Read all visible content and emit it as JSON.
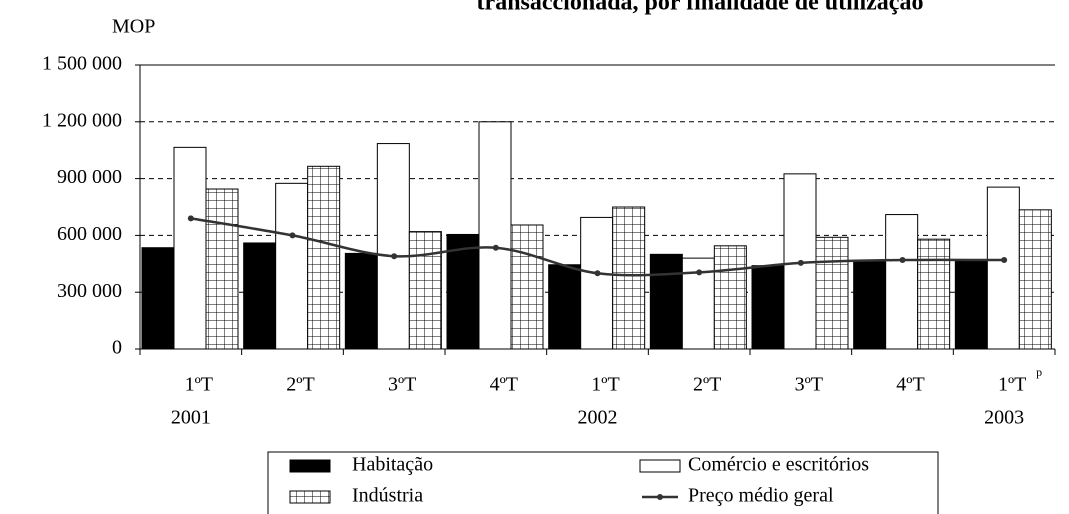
{
  "chart_data": {
    "type": "bar",
    "title": "transaccionada, por finalidade de utilização",
    "y_axis_label": "MOP",
    "categories": [
      "1ºT",
      "2ºT",
      "3ºT",
      "4ºT",
      "1ºT",
      "2ºT",
      "3ºT",
      "4ºT",
      "1ºT"
    ],
    "category_note": "p",
    "years": [
      "2001",
      null,
      null,
      null,
      "2002",
      null,
      null,
      null,
      "2003"
    ],
    "series": [
      {
        "name": "Habitação",
        "color": "#000000",
        "values": [
          535000,
          560000,
          505000,
          605000,
          445000,
          500000,
          440000,
          460000,
          465000
        ]
      },
      {
        "name": "Comércio e escritórios",
        "color": "#ffffff",
        "values": [
          1065000,
          875000,
          1085000,
          1200000,
          695000,
          480000,
          925000,
          710000,
          855000
        ]
      },
      {
        "name": "Indústria",
        "color": "hatch",
        "values": [
          845000,
          965000,
          620000,
          655000,
          750000,
          545000,
          590000,
          580000,
          735000
        ]
      },
      {
        "name": "Preço médio geral",
        "color": "#333333",
        "kind": "line",
        "values": [
          690000,
          600000,
          490000,
          535000,
          400000,
          405000,
          455000,
          470000,
          470000
        ]
      }
    ],
    "ylim": [
      0,
      1500000
    ],
    "yticks": [
      0,
      {
        "value": 300000,
        "label": "300 000"
      },
      {
        "value": 600000,
        "label": "600 000"
      },
      {
        "value": 900000,
        "label": "900 000"
      },
      {
        "value": 1200000,
        "label": "1 200 000"
      },
      {
        "value": 1500000,
        "label": "1 500 000"
      }
    ],
    "grid": true
  }
}
